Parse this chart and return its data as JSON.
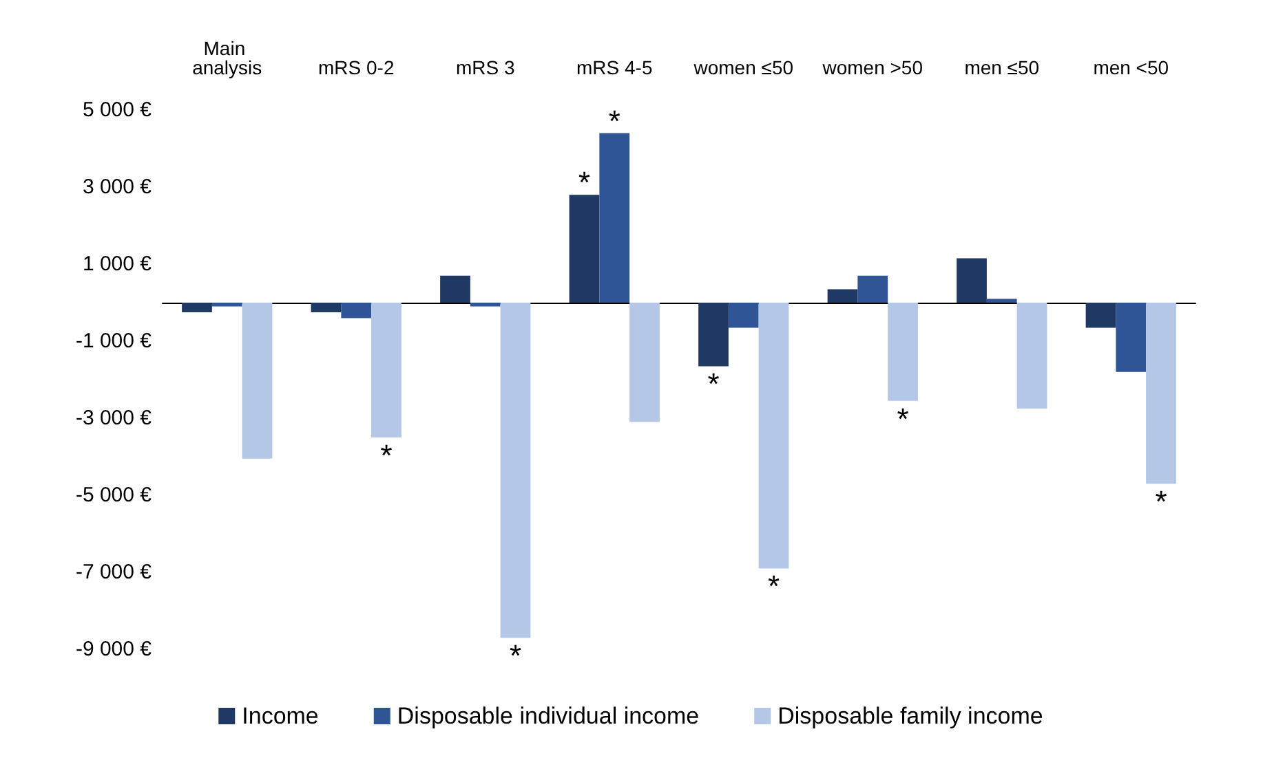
{
  "chart_data": {
    "type": "bar",
    "categories": [
      "Main analysis",
      "mRS 0-2",
      "mRS 3",
      "mRS 4-5",
      "women ≤50",
      "women >50",
      "men ≤50",
      "men <50"
    ],
    "series": [
      {
        "name": "Income",
        "color": "#1f3864",
        "values": [
          -250,
          -250,
          700,
          2800,
          -1650,
          350,
          1150,
          -650
        ],
        "value_labels": [
          null,
          null,
          null,
          "*",
          "*",
          null,
          null,
          null
        ]
      },
      {
        "name": "Disposable individual income",
        "color": "#2f5597",
        "values": [
          -100,
          -400,
          -100,
          4400,
          -650,
          700,
          100,
          -1800
        ],
        "value_labels": [
          null,
          null,
          null,
          "*",
          null,
          null,
          null,
          null
        ]
      },
      {
        "name": "Disposable family income",
        "color": "#b4c7e7",
        "values": [
          -4050,
          -3500,
          -8700,
          -3100,
          -6900,
          -2550,
          -2750,
          -4700
        ],
        "value_labels": [
          null,
          "*",
          "*",
          null,
          "*",
          "*",
          null,
          "*"
        ]
      }
    ],
    "ylim": [
      -9000,
      5000
    ],
    "yticks": [
      {
        "value": -9000,
        "label": "-9 000 €"
      },
      {
        "value": -7000,
        "label": "-7 000 €"
      },
      {
        "value": -5000,
        "label": "-5 000 €"
      },
      {
        "value": -3000,
        "label": "-3 000 €"
      },
      {
        "value": -1000,
        "label": "-1 000 €"
      },
      {
        "value": 1000,
        "label": "1 000 €"
      },
      {
        "value": 3000,
        "label": "3 000 €"
      },
      {
        "value": 5000,
        "label": "5 000 €"
      }
    ],
    "grid": false,
    "legend": "bottom"
  }
}
